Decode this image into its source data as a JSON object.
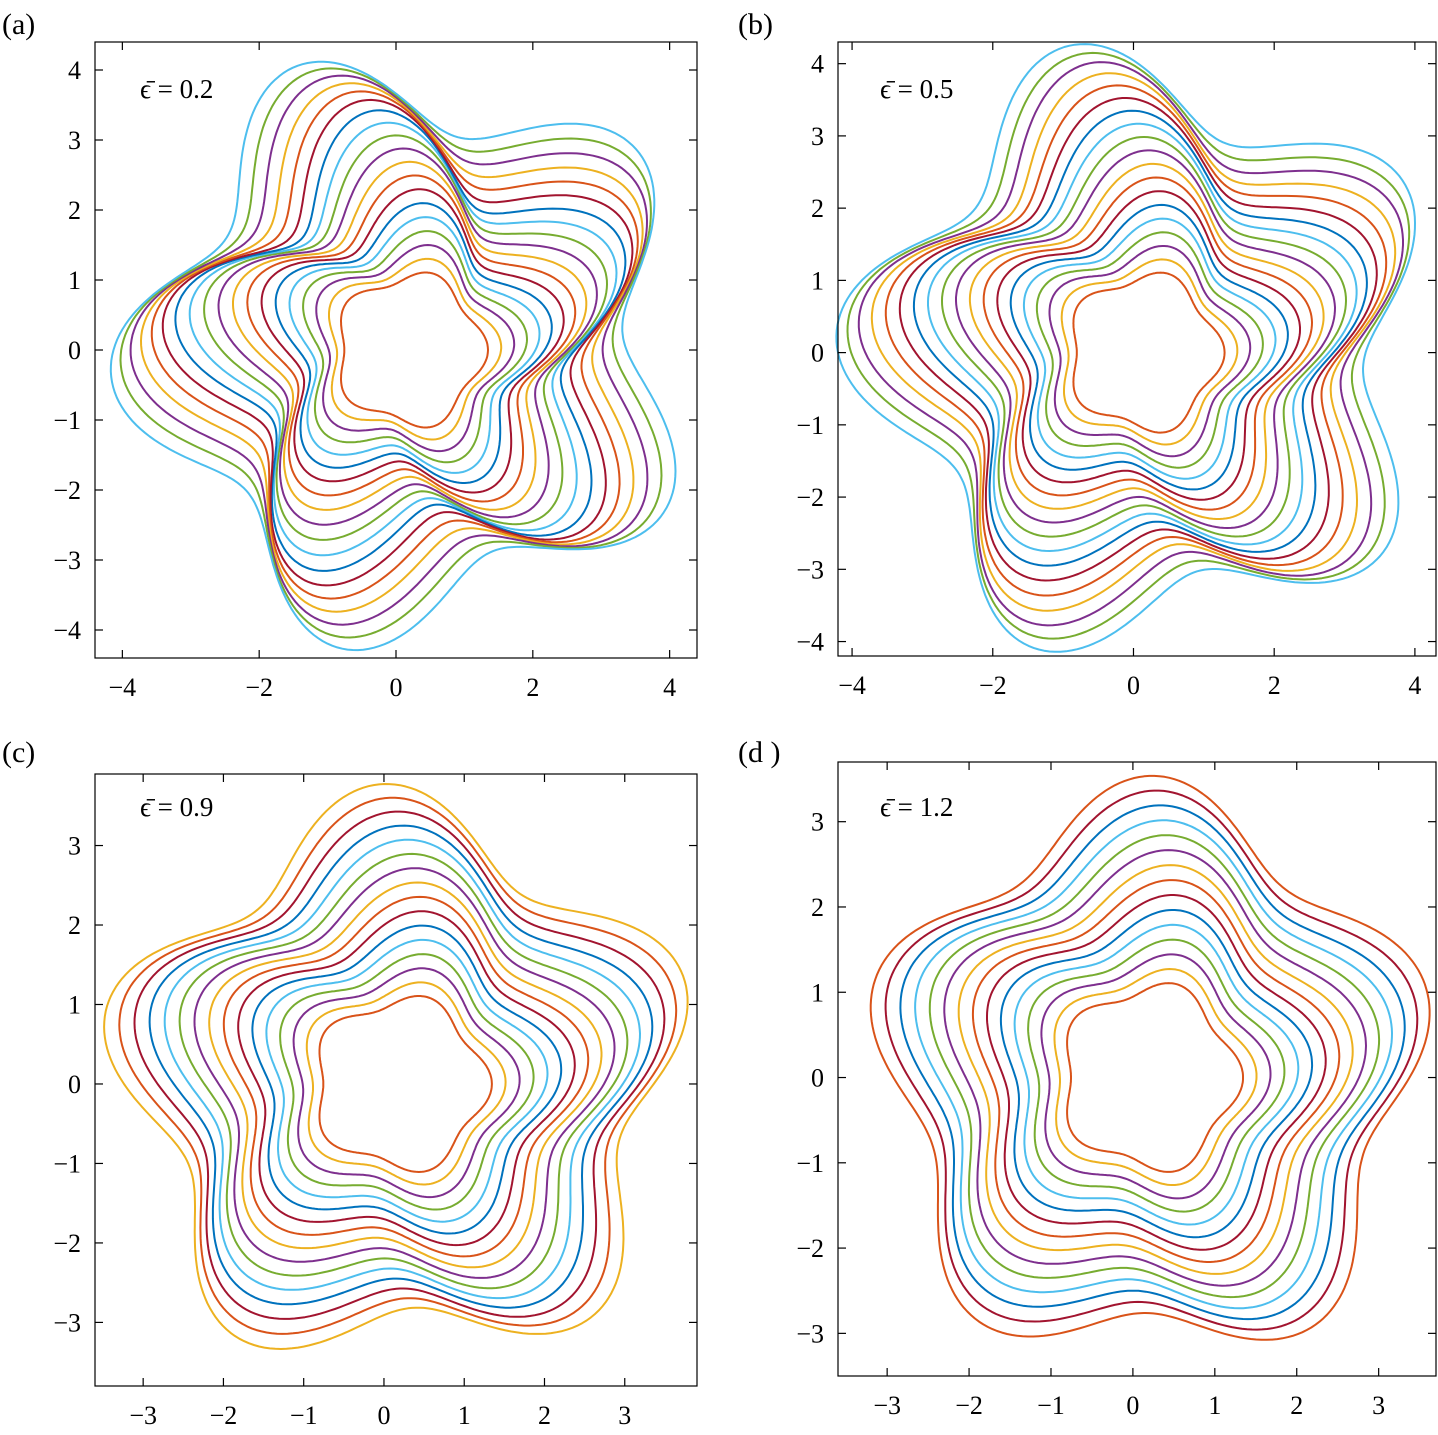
{
  "series_colors": [
    "#d95319",
    "#edb120",
    "#7e2f8e",
    "#77ac30",
    "#4dbeee",
    "#0072bd",
    "#a2142f"
  ],
  "chart_data": [
    {
      "type": "line",
      "panel_label": "(a)",
      "annotation": "ϵ̄ = 0.2",
      "epsilon": 0.2,
      "xlim": [
        -4.4,
        4.4
      ],
      "ylim": [
        -4.4,
        4.4
      ],
      "xticks": [
        -4,
        -2,
        0,
        2,
        4
      ],
      "yticks": [
        -4,
        -3,
        -2,
        -1,
        0,
        1,
        2,
        3,
        4
      ],
      "xtick_labels": [
        "−4",
        "−2",
        "0",
        "2",
        "4"
      ],
      "ytick_labels": [
        "−4",
        "−3",
        "−2",
        "−1",
        "0",
        "1",
        "2",
        "3",
        "4"
      ],
      "contour_levels": [
        1.05,
        1.2,
        1.35,
        1.5,
        1.65,
        1.8,
        1.95,
        2.1,
        2.25,
        2.4,
        2.55,
        2.7,
        2.85,
        3.0,
        3.15,
        3.3,
        3.45,
        3.6,
        3.75
      ],
      "lobes": 5,
      "center": [
        0.2,
        0.0
      ],
      "grid": false
    },
    {
      "type": "line",
      "panel_label": "(b)",
      "annotation": "ϵ̄ = 0.5",
      "epsilon": 0.5,
      "xlim": [
        -4.2,
        4.3
      ],
      "ylim": [
        -4.2,
        4.3
      ],
      "xticks": [
        -4,
        -2,
        0,
        2,
        4
      ],
      "yticks": [
        -4,
        -3,
        -2,
        -1,
        0,
        1,
        2,
        3,
        4
      ],
      "xtick_labels": [
        "−4",
        "−2",
        "0",
        "2",
        "4"
      ],
      "ytick_labels": [
        "−4",
        "−3",
        "−2",
        "−1",
        "0",
        "1",
        "2",
        "3",
        "4"
      ],
      "contour_levels": [
        1.05,
        1.2,
        1.35,
        1.5,
        1.65,
        1.8,
        1.95,
        2.1,
        2.25,
        2.4,
        2.55,
        2.7,
        2.85,
        3.0,
        3.15,
        3.3,
        3.45,
        3.6,
        3.75
      ],
      "lobes": 5,
      "center": [
        0.15,
        0.0
      ],
      "grid": false
    },
    {
      "type": "line",
      "panel_label": "(c)",
      "annotation": "ϵ̄ = 0.9",
      "epsilon": 0.9,
      "xlim": [
        -3.6,
        3.9
      ],
      "ylim": [
        -3.8,
        3.9
      ],
      "xticks": [
        -3,
        -2,
        -1,
        0,
        1,
        2,
        3
      ],
      "yticks": [
        -3,
        -2,
        -1,
        0,
        1,
        2,
        3
      ],
      "xtick_labels": [
        "−3",
        "−2",
        "−1",
        "0",
        "1",
        "2",
        "3"
      ],
      "ytick_labels": [
        "−3",
        "−2",
        "−1",
        "0",
        "1",
        "2",
        "3"
      ],
      "contour_levels": [
        1.05,
        1.2,
        1.35,
        1.5,
        1.65,
        1.8,
        1.95,
        2.1,
        2.25,
        2.4,
        2.55,
        2.7,
        2.85,
        3.0,
        3.15,
        3.3
      ],
      "lobes": 5,
      "center": [
        0.2,
        0.0
      ],
      "grid": false
    },
    {
      "type": "line",
      "panel_label": "(d )",
      "annotation": "ϵ̄ = 1.2",
      "epsilon": 1.2,
      "xlim": [
        -3.6,
        3.7
      ],
      "ylim": [
        -3.5,
        3.7
      ],
      "xticks": [
        -3,
        -2,
        -1,
        0,
        1,
        2,
        3
      ],
      "yticks": [
        -3,
        -2,
        -1,
        0,
        1,
        2,
        3
      ],
      "xtick_labels": [
        "−3",
        "−2",
        "−1",
        "0",
        "1",
        "2",
        "3"
      ],
      "ytick_labels": [
        "−3",
        "−2",
        "−1",
        "0",
        "1",
        "2",
        "3"
      ],
      "contour_levels": [
        1.05,
        1.2,
        1.35,
        1.5,
        1.65,
        1.8,
        1.95,
        2.1,
        2.25,
        2.4,
        2.55,
        2.7,
        2.85,
        3.0,
        3.15
      ],
      "lobes": 5,
      "center": [
        0.2,
        0.0
      ],
      "grid": false
    }
  ]
}
